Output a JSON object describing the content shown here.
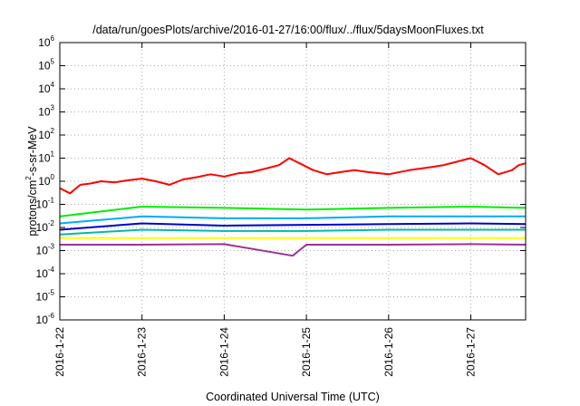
{
  "chart_data": {
    "type": "line",
    "title": "/data/run/goesPlots/archive/2016-01-27/16:00/flux/../flux/5daysMoonFluxes.txt",
    "xlabel": "Coordinated Universal Time (UTC)",
    "ylabel": {
      "prefix": "protons/cm",
      "sup": "2",
      "suffix": "-s-sr-MeV"
    },
    "x_ticks": [
      "2016-1-22",
      "2016-1-23",
      "2016-1-24",
      "2016-1-25",
      "2016-1-26",
      "2016-1-27"
    ],
    "xlim": [
      "2016-01-22T00:00",
      "2016-01-27T16:00"
    ],
    "y_scale": "log",
    "ylim": [
      1e-06,
      1000000.0
    ],
    "y_ticks": [
      {
        "exp": -6
      },
      {
        "exp": -5
      },
      {
        "exp": -4
      },
      {
        "exp": -3
      },
      {
        "exp": -2
      },
      {
        "exp": -1
      },
      {
        "exp": 0
      },
      {
        "exp": 1
      },
      {
        "exp": 2
      },
      {
        "exp": 3
      },
      {
        "exp": 4
      },
      {
        "exp": 5
      },
      {
        "exp": 6
      }
    ],
    "y_tick_base": "10",
    "grid": true,
    "series": [
      {
        "color": "#ff0000",
        "points": [
          [
            "2016-01-22T00:00",
            0.5
          ],
          [
            "2016-01-22T03:00",
            0.3
          ],
          [
            "2016-01-22T06:00",
            0.7
          ],
          [
            "2016-01-22T09:00",
            0.8
          ],
          [
            "2016-01-22T12:00",
            1.0
          ],
          [
            "2016-01-22T16:00",
            0.9
          ],
          [
            "2016-01-22T20:00",
            1.1
          ],
          [
            "2016-01-23T00:00",
            1.3
          ],
          [
            "2016-01-23T04:00",
            1.0
          ],
          [
            "2016-01-23T08:00",
            0.7
          ],
          [
            "2016-01-23T12:00",
            1.2
          ],
          [
            "2016-01-23T16:00",
            1.5
          ],
          [
            "2016-01-23T20:00",
            2.0
          ],
          [
            "2016-01-24T00:00",
            1.6
          ],
          [
            "2016-01-24T04:00",
            2.2
          ],
          [
            "2016-01-24T08:00",
            2.5
          ],
          [
            "2016-01-24T12:00",
            3.5
          ],
          [
            "2016-01-24T16:00",
            5.0
          ],
          [
            "2016-01-24T19:00",
            10.0
          ],
          [
            "2016-01-24T22:00",
            6.0
          ],
          [
            "2016-01-25T02:00",
            3.0
          ],
          [
            "2016-01-25T06:00",
            2.0
          ],
          [
            "2016-01-25T10:00",
            2.5
          ],
          [
            "2016-01-25T14:00",
            3.0
          ],
          [
            "2016-01-25T18:00",
            2.5
          ],
          [
            "2016-01-26T00:00",
            2.0
          ],
          [
            "2016-01-26T06:00",
            3.0
          ],
          [
            "2016-01-26T12:00",
            4.0
          ],
          [
            "2016-01-26T16:00",
            5.0
          ],
          [
            "2016-01-26T20:00",
            7.0
          ],
          [
            "2016-01-27T00:00",
            10.0
          ],
          [
            "2016-01-27T04:00",
            5.0
          ],
          [
            "2016-01-27T08:00",
            2.0
          ],
          [
            "2016-01-27T12:00",
            3.0
          ],
          [
            "2016-01-27T14:00",
            5.0
          ],
          [
            "2016-01-27T16:00",
            6.0
          ]
        ]
      },
      {
        "color": "#00ee00",
        "points": [
          [
            "2016-01-22T00:00",
            0.03
          ],
          [
            "2016-01-23T00:00",
            0.08
          ],
          [
            "2016-01-24T00:00",
            0.07
          ],
          [
            "2016-01-25T00:00",
            0.06
          ],
          [
            "2016-01-26T00:00",
            0.07
          ],
          [
            "2016-01-27T00:00",
            0.08
          ],
          [
            "2016-01-27T16:00",
            0.07
          ]
        ]
      },
      {
        "color": "#00aaff",
        "points": [
          [
            "2016-01-22T00:00",
            0.015
          ],
          [
            "2016-01-23T00:00",
            0.03
          ],
          [
            "2016-01-24T00:00",
            0.025
          ],
          [
            "2016-01-25T00:00",
            0.025
          ],
          [
            "2016-01-26T00:00",
            0.03
          ],
          [
            "2016-01-27T00:00",
            0.03
          ],
          [
            "2016-01-27T16:00",
            0.03
          ]
        ]
      },
      {
        "color": "#0000cc",
        "points": [
          [
            "2016-01-22T00:00",
            0.008
          ],
          [
            "2016-01-23T00:00",
            0.015
          ],
          [
            "2016-01-24T00:00",
            0.012
          ],
          [
            "2016-01-25T00:00",
            0.013
          ],
          [
            "2016-01-26T00:00",
            0.014
          ],
          [
            "2016-01-27T00:00",
            0.015
          ],
          [
            "2016-01-27T16:00",
            0.014
          ]
        ]
      },
      {
        "color": "#00bbaa",
        "points": [
          [
            "2016-01-22T00:00",
            0.005
          ],
          [
            "2016-01-23T00:00",
            0.008
          ],
          [
            "2016-01-24T00:00",
            0.007
          ],
          [
            "2016-01-25T00:00",
            0.007
          ],
          [
            "2016-01-26T00:00",
            0.008
          ],
          [
            "2016-01-27T00:00",
            0.008
          ],
          [
            "2016-01-27T16:00",
            0.008
          ]
        ]
      },
      {
        "color": "#ffff00",
        "points": [
          [
            "2016-01-22T00:00",
            0.0035
          ],
          [
            "2016-01-23T00:00",
            0.0035
          ],
          [
            "2016-01-24T00:00",
            0.0035
          ],
          [
            "2016-01-25T00:00",
            0.0035
          ],
          [
            "2016-01-26T00:00",
            0.0035
          ],
          [
            "2016-01-27T00:00",
            0.0035
          ],
          [
            "2016-01-27T16:00",
            0.0035
          ]
        ]
      },
      {
        "color": "#993399",
        "points": [
          [
            "2016-01-22T00:00",
            0.0018
          ],
          [
            "2016-01-23T00:00",
            0.0018
          ],
          [
            "2016-01-24T00:00",
            0.0019
          ],
          [
            "2016-01-24T20:00",
            0.0006
          ],
          [
            "2016-01-25T00:00",
            0.0018
          ],
          [
            "2016-01-26T00:00",
            0.0018
          ],
          [
            "2016-01-27T00:00",
            0.0019
          ],
          [
            "2016-01-27T16:00",
            0.0018
          ]
        ]
      }
    ]
  }
}
